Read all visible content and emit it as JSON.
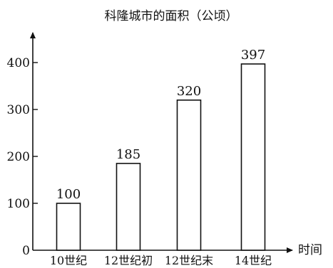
{
  "chart_data": {
    "type": "bar",
    "title": "科隆城市的面积（公顷）",
    "xlabel": "时间",
    "ylabel": "",
    "categories": [
      "10世纪",
      "12世纪初",
      "12世纪末",
      "14世纪"
    ],
    "values": [
      100,
      185,
      320,
      397
    ],
    "yticks": [
      0,
      100,
      200,
      300,
      400
    ],
    "ylim": [
      0,
      450
    ],
    "grid": false,
    "legend": "none",
    "colors": {
      "bar_fill": "#ffffff",
      "bar_stroke": "#111111",
      "axis": "#111111"
    }
  }
}
